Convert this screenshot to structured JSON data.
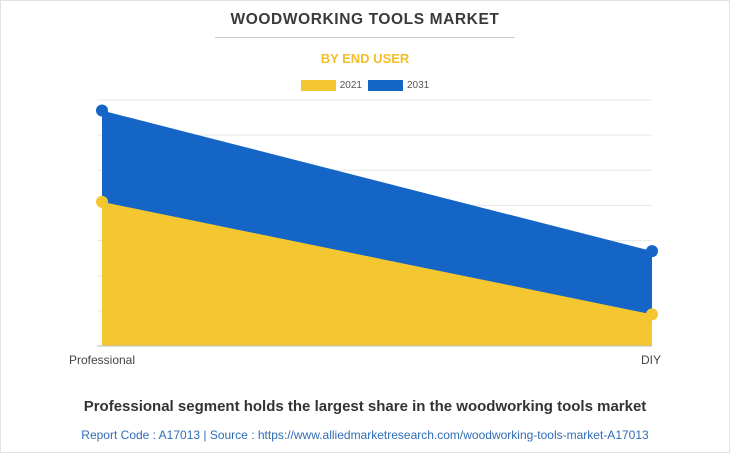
{
  "chart_data": {
    "type": "area",
    "title": "WOODWORKING TOOLS MARKET",
    "subtitle": "BY END USER",
    "categories": [
      "Professional",
      "DIY"
    ],
    "series": [
      {
        "name": "2021",
        "values": [
          4.1,
          0.9
        ],
        "color": "#f4c62f"
      },
      {
        "name": "2031",
        "values": [
          6.7,
          2.7
        ],
        "color": "#1565c7"
      }
    ],
    "ylim": [
      0,
      7
    ],
    "grid": true,
    "legend_position": "top-center",
    "xlabel": "",
    "ylabel": ""
  },
  "footer": {
    "caption": "Professional segment holds the largest share in the woodworking tools market",
    "source": "Report Code : A17013  |  Source : https://www.alliedmarketresearch.com/woodworking-tools-market-A17013"
  }
}
